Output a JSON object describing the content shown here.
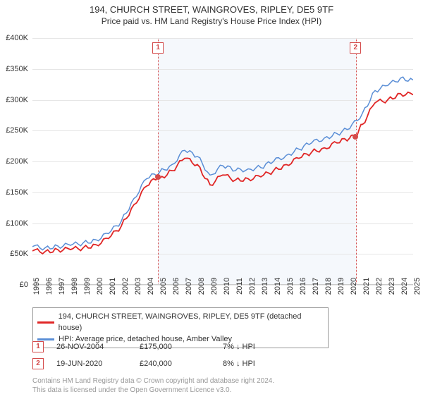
{
  "title": "194, CHURCH STREET, WAINGROVES, RIPLEY, DE5 9TF",
  "subtitle": "Price paid vs. HM Land Registry's House Price Index (HPI)",
  "chart": {
    "type": "line",
    "background_color": "#ffffff",
    "grid_color": "#e6e6e6",
    "ylim": [
      0,
      400000
    ],
    "ytick_step": 50000,
    "ytick_labels": [
      "£0",
      "£50K",
      "£100K",
      "£150K",
      "£200K",
      "£250K",
      "£300K",
      "£350K",
      "£400K"
    ],
    "ylabel_fontsize": 11,
    "x_years": [
      1995,
      1996,
      1997,
      1998,
      1999,
      2000,
      2001,
      2002,
      2003,
      2004,
      2005,
      2006,
      2007,
      2008,
      2009,
      2010,
      2011,
      2012,
      2013,
      2014,
      2015,
      2016,
      2017,
      2018,
      2019,
      2020,
      2021,
      2022,
      2023,
      2024,
      2025
    ],
    "xlabel_fontsize": 11,
    "shade": {
      "start_year": 2004.9,
      "end_year": 2020.46,
      "color": "#f5f8fc",
      "border_color": "#d44a4a"
    },
    "series": [
      {
        "name": "property",
        "label": "194, CHURCH STREET, WAINGROVES, RIPLEY, DE5 9TF (detached house)",
        "color": "#e02626",
        "line_width": 1.8,
        "points": [
          [
            1995,
            55000
          ],
          [
            1996,
            54000
          ],
          [
            1997,
            57000
          ],
          [
            1998,
            57000
          ],
          [
            1999,
            60000
          ],
          [
            2000,
            65000
          ],
          [
            2001,
            75000
          ],
          [
            2002,
            95000
          ],
          [
            2003,
            130000
          ],
          [
            2004,
            160000
          ],
          [
            2004.9,
            175000
          ],
          [
            2005,
            172000
          ],
          [
            2006,
            185000
          ],
          [
            2007,
            205000
          ],
          [
            2008,
            195000
          ],
          [
            2009,
            162000
          ],
          [
            2010,
            178000
          ],
          [
            2011,
            170000
          ],
          [
            2012,
            172000
          ],
          [
            2013,
            175000
          ],
          [
            2014,
            185000
          ],
          [
            2015,
            195000
          ],
          [
            2016,
            205000
          ],
          [
            2017,
            215000
          ],
          [
            2018,
            222000
          ],
          [
            2019,
            230000
          ],
          [
            2020,
            238000
          ],
          [
            2020.46,
            240000
          ],
          [
            2021,
            260000
          ],
          [
            2022,
            295000
          ],
          [
            2023,
            300000
          ],
          [
            2024,
            310000
          ],
          [
            2025,
            308000
          ]
        ]
      },
      {
        "name": "hpi",
        "label": "HPI: Average price, detached house, Amber Valley",
        "color": "#5a8ed6",
        "line_width": 1.5,
        "points": [
          [
            1995,
            62000
          ],
          [
            1996,
            60000
          ],
          [
            1997,
            63000
          ],
          [
            1998,
            64000
          ],
          [
            1999,
            68000
          ],
          [
            2000,
            73000
          ],
          [
            2001,
            83000
          ],
          [
            2002,
            103000
          ],
          [
            2003,
            140000
          ],
          [
            2004,
            172000
          ],
          [
            2005,
            182000
          ],
          [
            2006,
            195000
          ],
          [
            2007,
            218000
          ],
          [
            2008,
            208000
          ],
          [
            2009,
            178000
          ],
          [
            2010,
            193000
          ],
          [
            2011,
            185000
          ],
          [
            2012,
            188000
          ],
          [
            2013,
            190000
          ],
          [
            2014,
            200000
          ],
          [
            2015,
            210000
          ],
          [
            2016,
            220000
          ],
          [
            2017,
            230000
          ],
          [
            2018,
            238000
          ],
          [
            2019,
            245000
          ],
          [
            2020,
            253000
          ],
          [
            2021,
            278000
          ],
          [
            2022,
            315000
          ],
          [
            2023,
            323000
          ],
          [
            2024,
            335000
          ],
          [
            2025,
            332000
          ]
        ]
      }
    ],
    "markers": [
      {
        "n": "1",
        "year": 2004.9,
        "value": 175000
      },
      {
        "n": "2",
        "year": 2020.46,
        "value": 240000
      }
    ]
  },
  "legend": {
    "rows": [
      {
        "color": "#e02626",
        "text": "194, CHURCH STREET, WAINGROVES, RIPLEY, DE5 9TF (detached house)"
      },
      {
        "color": "#5a8ed6",
        "text": "HPI: Average price, detached house, Amber Valley"
      }
    ]
  },
  "sales": [
    {
      "n": "1",
      "date": "26-NOV-2004",
      "price": "£175,000",
      "delta": "7% ↓ HPI"
    },
    {
      "n": "2",
      "date": "19-JUN-2020",
      "price": "£240,000",
      "delta": "8% ↓ HPI"
    }
  ],
  "footer": {
    "line1": "Contains HM Land Registry data © Crown copyright and database right 2024.",
    "line2": "This data is licensed under the Open Government Licence v3.0."
  }
}
